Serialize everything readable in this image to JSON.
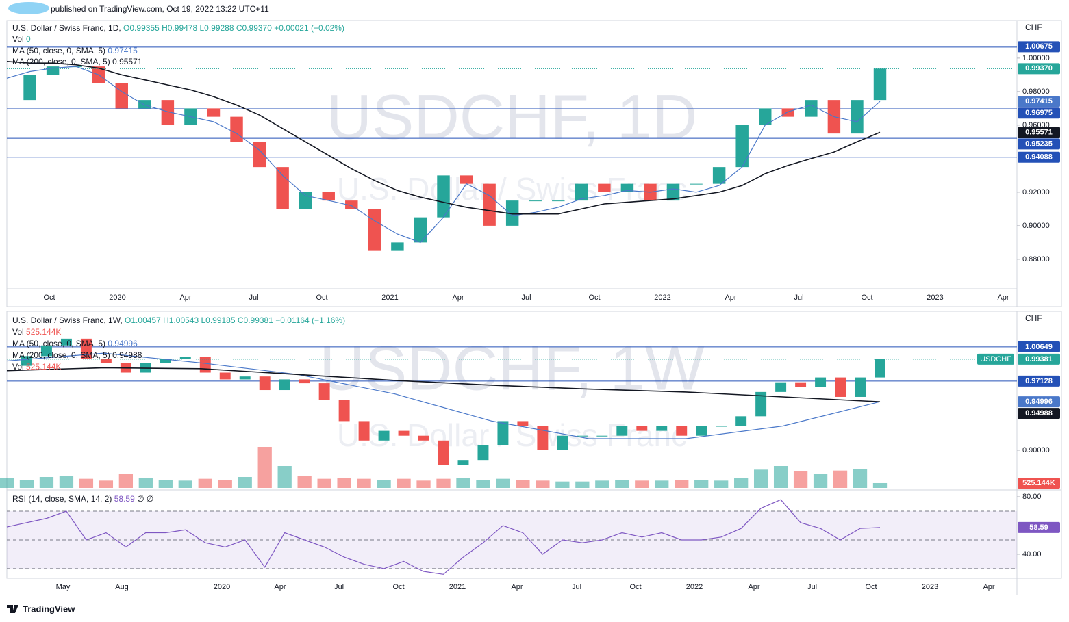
{
  "header": {
    "text": "published on TradingView.com, Oct 19, 2022 13:22 UTC+11"
  },
  "footer": {
    "brand": "TradingView"
  },
  "chart_data": [
    {
      "type": "candlestick",
      "title": "U.S. Dollar / Swiss Franc, 1D,",
      "ohlc_text": "O0.99355 H0.99478 L0.99288 C0.99370 +0.00021 (+0.02%)",
      "watermark": "USDCHF, 1D",
      "watermark_subtitle": "U.S. Dollar / Swiss Franc",
      "axis_unit": "CHF",
      "volume_legend": {
        "label": "Vol",
        "value": 0
      },
      "up_color": "#26a69a",
      "down_color": "#ef5350",
      "ylim": [
        0.8624,
        1.0224
      ],
      "yticks": [
        {
          "value": 0.88,
          "label": "0.88000"
        },
        {
          "value": 0.9,
          "label": "0.90000"
        },
        {
          "value": 0.92,
          "label": "0.92000"
        },
        {
          "value": 0.96,
          "label": "0.96000"
        },
        {
          "value": 0.98,
          "label": "0.98000"
        },
        {
          "value": 1.0,
          "label": "1.00000"
        }
      ],
      "xtick_labels": [
        "Oct",
        "2020",
        "Apr",
        "Jul",
        "Oct",
        "2021",
        "Apr",
        "Jul",
        "Oct",
        "2022",
        "Apr",
        "Jul",
        "Oct",
        "2023",
        "Apr"
      ],
      "series": [
        {
          "name": "U.S. Dollar / Swiss Franc, 1D,",
          "kind": "price",
          "last_label": "0.99370",
          "values": [
            0.975,
            0.99,
            0.995,
            0.995,
            0.985,
            0.97,
            0.975,
            0.96,
            0.97,
            0.965,
            0.95,
            0.935,
            0.91,
            0.92,
            0.915,
            0.91,
            0.885,
            0.89,
            0.905,
            0.93,
            0.925,
            0.9,
            0.915,
            0.915,
            0.915,
            0.925,
            0.92,
            0.925,
            0.915,
            0.925,
            0.925,
            0.935,
            0.96,
            0.97,
            0.965,
            0.975,
            0.955,
            0.975,
            0.9937
          ]
        },
        {
          "name": "MA (50, close, 0, SMA, 5)",
          "kind": "line",
          "color": "#4a78c9",
          "last_label": "0.97415",
          "values": [
            0.988,
            0.992,
            0.994,
            0.995,
            0.99,
            0.98,
            0.972,
            0.968,
            0.965,
            0.962,
            0.955,
            0.945,
            0.93,
            0.918,
            0.915,
            0.912,
            0.903,
            0.895,
            0.89,
            0.905,
            0.925,
            0.918,
            0.906,
            0.908,
            0.911,
            0.916,
            0.918,
            0.921,
            0.92,
            0.922,
            0.92,
            0.924,
            0.935,
            0.96,
            0.968,
            0.972,
            0.965,
            0.962,
            0.97415
          ]
        },
        {
          "name": "MA (200, close, 0, SMA, 5)",
          "kind": "line",
          "color": "#131722",
          "last_label": "0.95571",
          "values": [
            0.998,
            0.997,
            0.997,
            0.996,
            0.994,
            0.99,
            0.987,
            0.984,
            0.981,
            0.977,
            0.972,
            0.966,
            0.958,
            0.95,
            0.942,
            0.934,
            0.927,
            0.921,
            0.917,
            0.914,
            0.911,
            0.909,
            0.907,
            0.907,
            0.907,
            0.91,
            0.913,
            0.914,
            0.915,
            0.916,
            0.918,
            0.92,
            0.924,
            0.931,
            0.936,
            0.94,
            0.944,
            0.95,
            0.95571
          ]
        }
      ],
      "levels": [
        {
          "value": 1.00675,
          "label": "1.00675",
          "color": "#2451b7",
          "thick": true
        },
        {
          "value": 0.96975,
          "label": "0.96975",
          "color": "#2451b7",
          "thick": false
        },
        {
          "value": 0.95235,
          "label": "0.95235",
          "color": "#2451b7",
          "thick": true
        },
        {
          "value": 0.94088,
          "label": "0.94088",
          "color": "#2451b7",
          "thick": false
        }
      ]
    },
    {
      "type": "candlestick",
      "title": "U.S. Dollar / Swiss Franc, 1W,",
      "ohlc_text": "O1.00457 H1.00543 L0.99185 C0.99381 −0.01164 (−1.16%)",
      "watermark": "USDCHF, 1W",
      "watermark_subtitle": "U.S. Dollar / Swiss Franc",
      "axis_unit": "CHF",
      "symbol_badge": "USDCHF",
      "up_color": "#26a69a",
      "down_color": "#ef5350",
      "ylim": [
        0.8598,
        1.0431
      ],
      "yticks": [
        {
          "value": 0.9,
          "label": "0.90000"
        }
      ],
      "series": [
        {
          "name": "U.S. Dollar / Swiss Franc, 1W,",
          "kind": "price",
          "last_label": "0.99381",
          "values": [
            0.987,
            0.997,
            1.008,
            1.015,
            0.994,
            0.99,
            0.98,
            0.99,
            0.994,
            0.996,
            0.98,
            0.973,
            0.976,
            0.962,
            0.973,
            0.969,
            0.952,
            0.93,
            0.91,
            0.92,
            0.915,
            0.91,
            0.885,
            0.89,
            0.905,
            0.93,
            0.925,
            0.9,
            0.915,
            0.915,
            0.915,
            0.925,
            0.92,
            0.925,
            0.915,
            0.925,
            0.925,
            0.935,
            0.96,
            0.97,
            0.965,
            0.975,
            0.955,
            0.975,
            0.99381
          ]
        },
        {
          "name": "MA (50, close, 0, SMA, 5)",
          "kind": "line",
          "color": "#4a78c9",
          "last_label": "0.94996",
          "values": [
            0.992,
            1.0,
            0.99,
            0.978,
            0.958,
            0.93,
            0.912,
            0.912,
            0.925,
            0.94996
          ]
        },
        {
          "name": "MA (200, close, 0, SMA, 5)",
          "kind": "line",
          "color": "#131722",
          "last_label": "0.94988",
          "values": [
            0.982,
            0.985,
            0.984,
            0.978,
            0.972,
            0.967,
            0.963,
            0.96,
            0.955,
            0.94988
          ]
        }
      ],
      "volume": {
        "label": "Vol",
        "last_label": "525.144K",
        "ylim": [
          0,
          19500
        ],
        "values": [
          1100,
          900,
          1200,
          1300,
          1000,
          800,
          1500,
          1100,
          900,
          800,
          1000,
          900,
          1200,
          4500,
          2400,
          1300,
          1000,
          1100,
          1000,
          900,
          1000,
          800,
          1000,
          1100,
          900,
          1000,
          900,
          800,
          700,
          700,
          800,
          900,
          800,
          800,
          900,
          900,
          800,
          1100,
          2000,
          2400,
          1800,
          1500,
          1900,
          2100,
          525.144
        ]
      },
      "levels": [
        {
          "value": 1.00649,
          "label": "1.00649",
          "color": "#2451b7",
          "thick": false
        },
        {
          "value": 0.97128,
          "label": "0.97128",
          "color": "#2451b7",
          "thick": false
        }
      ]
    },
    {
      "type": "line",
      "ylim": [
        23.3,
        83.8
      ],
      "yticks": [
        {
          "value": 80,
          "label": "80.00"
        },
        {
          "value": 40,
          "label": "40.00"
        }
      ],
      "band_lines": [
        70,
        50,
        30
      ],
      "band_color": "#7e57c2",
      "xtick_labels": [
        "May",
        "Aug",
        "2020",
        "Apr",
        "Jul",
        "Oct",
        "2021",
        "Apr",
        "Jul",
        "Oct",
        "2022",
        "Apr",
        "Jul",
        "Oct",
        "2023",
        "Apr"
      ],
      "series": [
        {
          "name": "RSI (14, close, SMA, 14, 2)",
          "kind": "line",
          "color": "#7e57c2",
          "last_label": "58.59",
          "extra": "∅ ∅",
          "values": [
            59,
            62,
            65,
            70,
            50,
            55,
            45,
            55,
            55,
            57,
            48,
            45,
            50,
            31,
            55,
            50,
            45,
            38,
            33,
            30,
            35,
            28,
            26,
            38,
            48,
            60,
            55,
            40,
            50,
            48,
            50,
            55,
            52,
            55,
            50,
            50,
            52,
            58,
            72,
            78,
            62,
            58,
            50,
            58,
            58.59
          ]
        }
      ]
    }
  ]
}
